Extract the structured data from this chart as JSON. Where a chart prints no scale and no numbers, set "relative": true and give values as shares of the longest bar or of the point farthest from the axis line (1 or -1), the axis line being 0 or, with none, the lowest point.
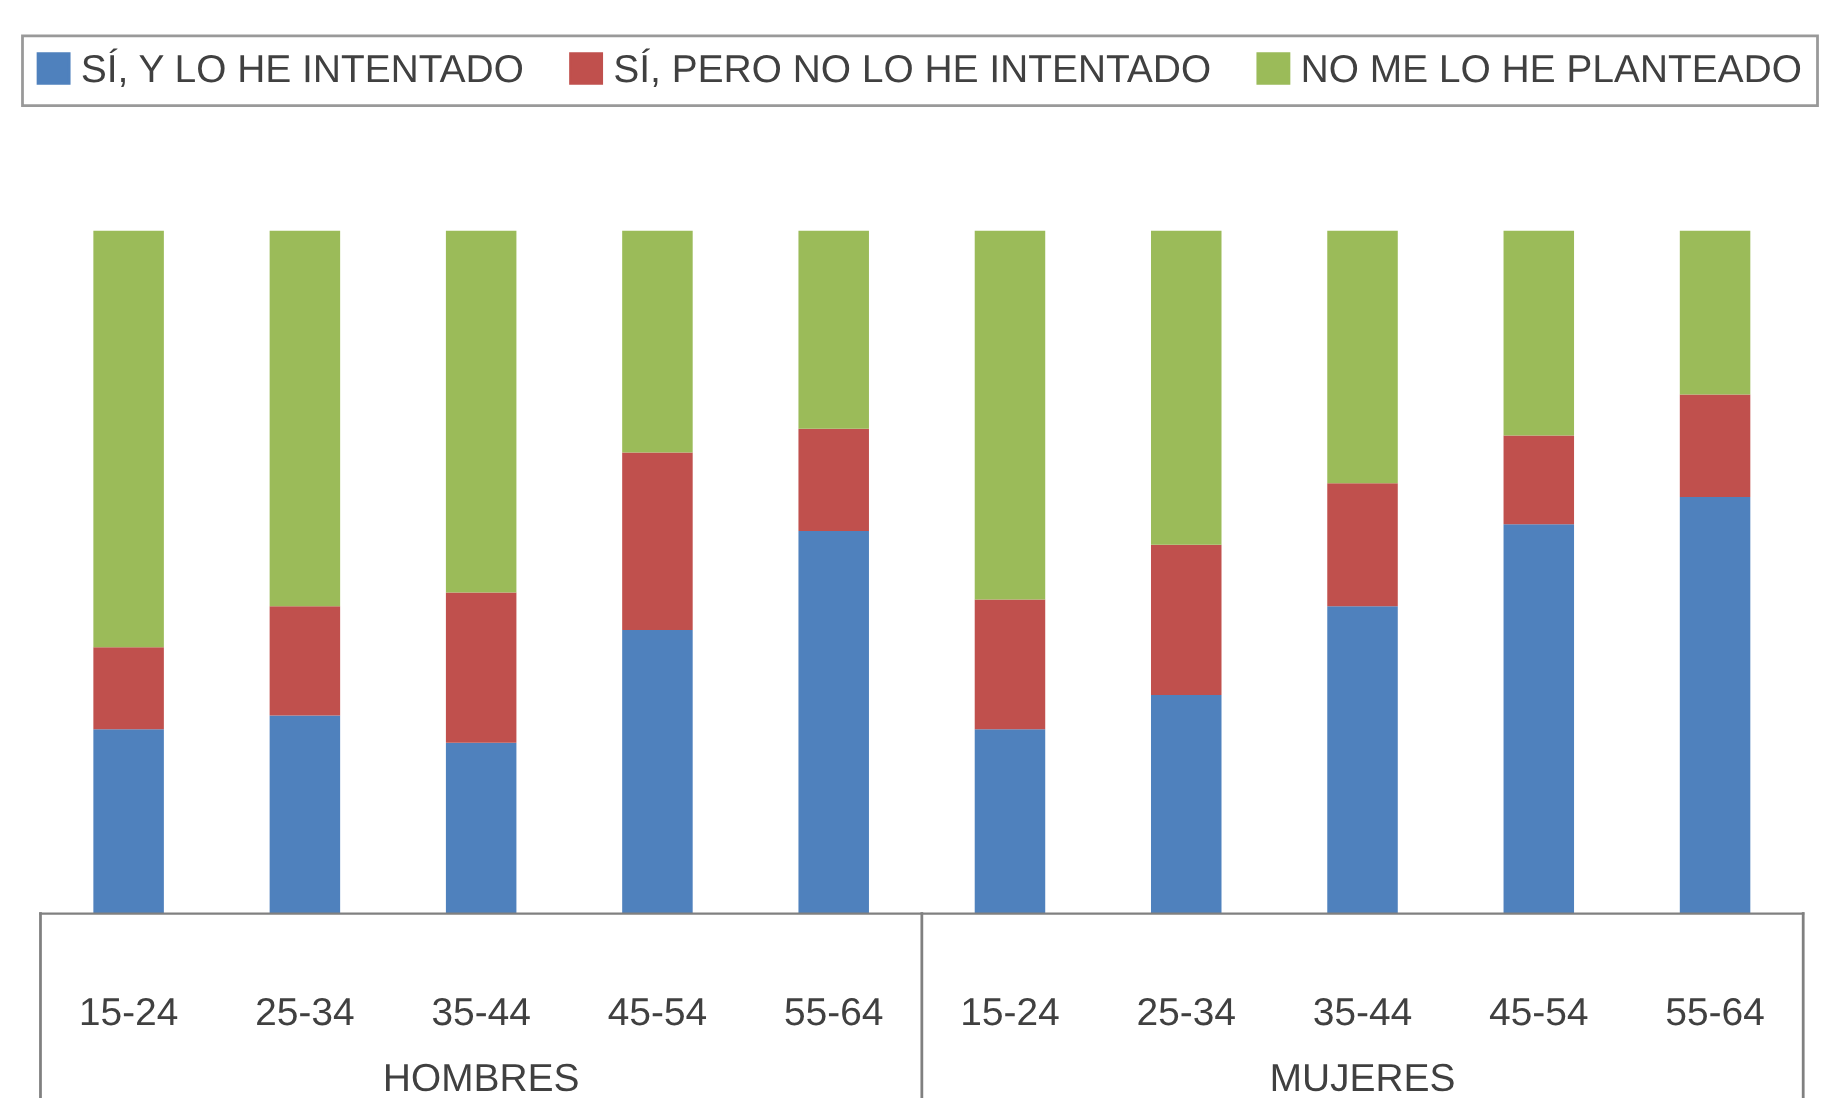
{
  "chart_data": {
    "type": "bar",
    "stacked": true,
    "relative": true,
    "legend": "top",
    "categories": [
      "15-24",
      "25-34",
      "35-44",
      "45-54",
      "55-64",
      "15-24",
      "25-34",
      "35-44",
      "45-54",
      "55-64"
    ],
    "series": [
      {
        "name": "SÍ, Y LO HE INTENTADO",
        "color": "#4f81bd",
        "values": [
          0.27,
          0.29,
          0.25,
          0.415,
          0.56,
          0.27,
          0.32,
          0.45,
          0.57,
          0.61
        ]
      },
      {
        "name": "SÍ, PERO NO LO HE INTENTADO",
        "color": "#c0504d",
        "values": [
          0.12,
          0.16,
          0.22,
          0.26,
          0.15,
          0.19,
          0.22,
          0.18,
          0.13,
          0.15
        ]
      },
      {
        "name": "NO ME LO HE PLANTEADO",
        "color": "#9bbb59",
        "values": [
          0.61,
          0.55,
          0.53,
          0.325,
          0.29,
          0.54,
          0.46,
          0.37,
          0.3,
          0.24
        ]
      }
    ],
    "annotations": [
      "HOMBRES",
      "MUJERES"
    ]
  }
}
